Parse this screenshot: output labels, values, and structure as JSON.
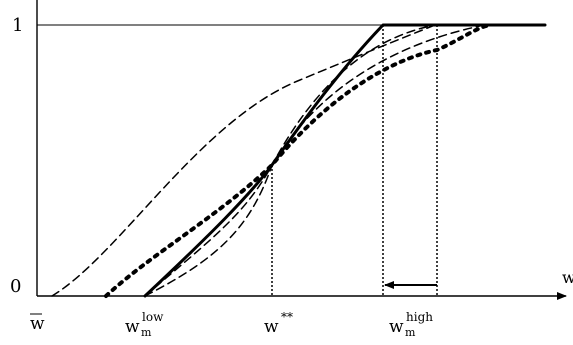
{
  "figure": {
    "y_axis": {
      "tick_top": "1",
      "tick_bottom": "0"
    },
    "x_axis": {
      "label": "w"
    },
    "x_markers": [
      {
        "id": "wbar",
        "base": "w",
        "overbar": true,
        "sup": "",
        "sub": ""
      },
      {
        "id": "wlow",
        "base": "w",
        "overbar": false,
        "sup": "low",
        "sub": "m"
      },
      {
        "id": "wstar",
        "base": "w",
        "overbar": false,
        "sup": "**",
        "sub": ""
      },
      {
        "id": "whigh",
        "base": "w",
        "overbar": false,
        "sup": "high",
        "sub": "m"
      }
    ],
    "curves": [
      {
        "name": "solid-curve",
        "style": "solid"
      },
      {
        "name": "bold-dotted-curve",
        "style": "bold-dotted"
      },
      {
        "name": "dashed-curve-a",
        "style": "dashed"
      },
      {
        "name": "dashed-curve-b",
        "style": "dashed"
      },
      {
        "name": "dashed-curve-c",
        "style": "dashed"
      }
    ],
    "arrow": {
      "direction": "left",
      "from": "whigh",
      "to": "whigh-solid-kink"
    }
  }
}
